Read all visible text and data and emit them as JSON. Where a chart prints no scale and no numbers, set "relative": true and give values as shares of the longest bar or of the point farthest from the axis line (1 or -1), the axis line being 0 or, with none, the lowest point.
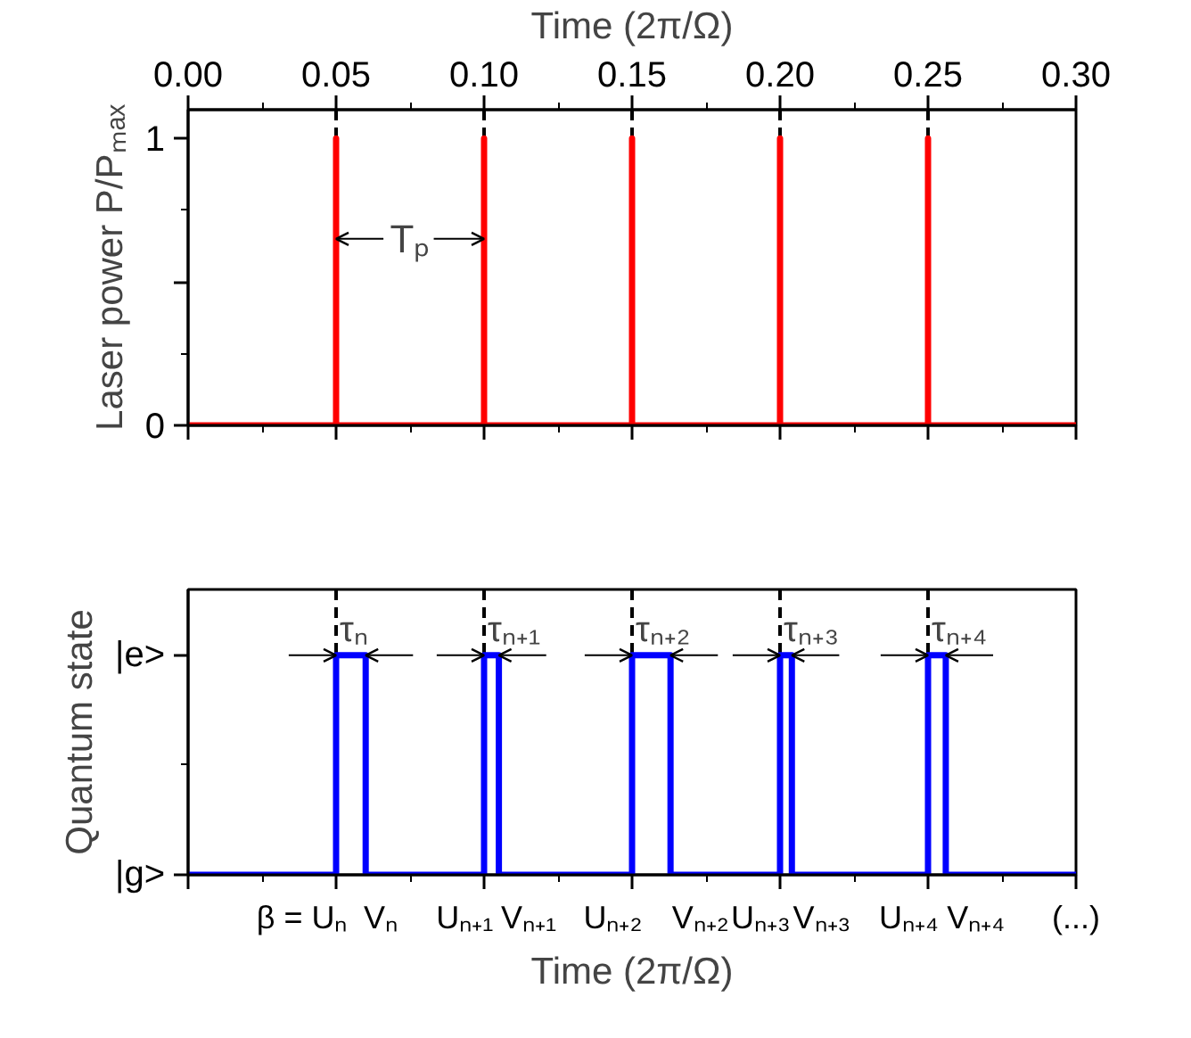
{
  "chart_data": [
    {
      "type": "line",
      "ylabel": "Laser power P/Pₘₐₓ",
      "xlabel": "Time (2π/Ω)",
      "xlim": [
        0,
        0.3
      ],
      "xticks": [
        {
          "value": 0,
          "label": "0.00"
        },
        {
          "value": 0.05,
          "label": "0.05"
        },
        {
          "value": 0.1,
          "label": "0.10"
        },
        {
          "value": 0.15,
          "label": "0.15"
        },
        {
          "value": 0.2,
          "label": "0.20"
        },
        {
          "value": 0.25,
          "label": "0.25"
        },
        {
          "value": 0.3,
          "label": "0.30"
        }
      ],
      "ylim": [
        0,
        1.1
      ],
      "yticks": [
        0,
        {
          "value": 0.5,
          "label": null
        },
        1
      ],
      "series": [
        {
          "color": "#ff0000",
          "x": [
            0,
            0.05,
            0.05,
            0.05,
            0.1,
            0.1,
            0.1,
            0.15,
            0.15,
            0.15,
            0.2,
            0.2,
            0.2,
            0.25,
            0.25,
            0.25,
            0.3
          ],
          "values": [
            0,
            0,
            1,
            0,
            0,
            1,
            0,
            0,
            1,
            0,
            0,
            1,
            0,
            0,
            1,
            0,
            0
          ]
        }
      ],
      "ref_lines": [
        {
          "axis": "x",
          "value": 0.05,
          "color": "#000000",
          "line_style": "dashed"
        },
        {
          "axis": "x",
          "value": 0.1,
          "color": "#000000",
          "line_style": "dashed"
        },
        {
          "axis": "x",
          "value": 0.15,
          "color": "#000000",
          "line_style": "dashed"
        },
        {
          "axis": "x",
          "value": 0.2,
          "color": "#000000",
          "line_style": "dashed"
        },
        {
          "axis": "x",
          "value": 0.25,
          "color": "#000000",
          "line_style": "dashed"
        }
      ],
      "annotations": [
        "Tₚ"
      ]
    },
    {
      "type": "line",
      "xlabel": "Time (2π/Ω)",
      "ylabel": "Quantum state",
      "xlim": [
        0,
        0.3
      ],
      "tick_labels": "y",
      "xticks": [
        0,
        0.05,
        0.1,
        0.15,
        0.2,
        0.25,
        0.3
      ],
      "relative": true,
      "series": [
        {
          "color": "#0000ff",
          "x": [
            0,
            0.05,
            0.05,
            0.06,
            0.06,
            0.1,
            0.1,
            0.105,
            0.105,
            0.15,
            0.15,
            0.163,
            0.163,
            0.2,
            0.2,
            0.204,
            0.204,
            0.25,
            0.25,
            0.256,
            0.256,
            0.3
          ],
          "values": [
            0,
            0,
            1,
            1,
            0,
            0,
            1,
            1,
            0,
            0,
            1,
            1,
            0,
            0,
            1,
            1,
            0,
            0,
            1,
            1,
            0,
            0
          ]
        }
      ],
      "ref_lines": [
        {
          "axis": "x",
          "value": 0.05,
          "color": "#000000",
          "line_style": "dashed"
        },
        {
          "axis": "x",
          "value": 0.1,
          "color": "#000000",
          "line_style": "dashed"
        },
        {
          "axis": "x",
          "value": 0.15,
          "color": "#000000",
          "line_style": "dashed"
        },
        {
          "axis": "x",
          "value": 0.2,
          "color": "#000000",
          "line_style": "dashed"
        },
        {
          "axis": "x",
          "value": 0.25,
          "color": "#000000",
          "line_style": "dashed"
        }
      ],
      "annotations": [
        "|g>",
        "|e>",
        {
          "text": "τₙ",
          "x": 0.05,
          "y": 1
        },
        {
          "text": "τₙ₊₁",
          "x": 0.1,
          "y": 1
        },
        {
          "text": "τₙ₊₂",
          "x": 0.15,
          "y": 1
        },
        {
          "text": "τₙ₊₃",
          "x": 0.2,
          "y": 1
        },
        {
          "text": "τₙ₊₄",
          "x": 0.25,
          "y": 1
        },
        {
          "text": "β = Uₙ",
          "x": 0.05,
          "y": 0
        },
        {
          "text": "Vₙ",
          "x": 0.06,
          "y": 0
        },
        {
          "text": "Uₙ₊₁",
          "x": 0.1,
          "y": 0
        },
        {
          "text": "Vₙ₊₁",
          "x": 0.105,
          "y": 0
        },
        {
          "text": "Uₙ₊₂",
          "x": 0.15,
          "y": 0
        },
        {
          "text": "Vₙ₊₂",
          "x": 0.163,
          "y": 0
        },
        {
          "text": "Uₙ₊₃",
          "x": 0.2,
          "y": 0
        },
        {
          "text": "Vₙ₊₃",
          "x": 0.204,
          "y": 0
        },
        {
          "text": "Uₙ₊₄",
          "x": 0.25,
          "y": 0
        },
        {
          "text": "Vₙ₊₄",
          "x": 0.256,
          "y": 0
        },
        "(...)"
      ]
    }
  ]
}
